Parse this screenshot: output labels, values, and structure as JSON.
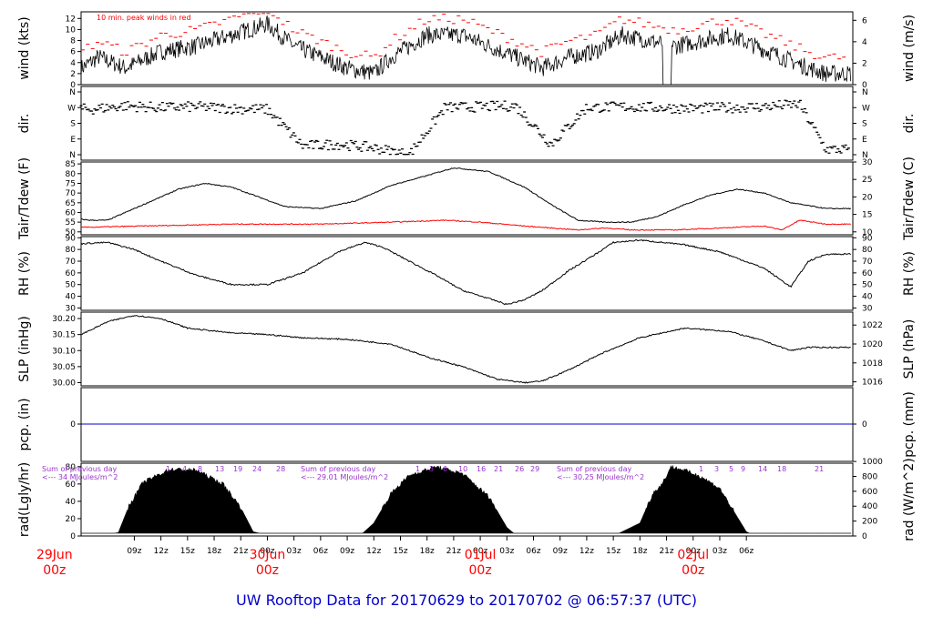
{
  "title": "UW Rooftop Data for 20170629  to  20170702 @ 06:57:37  (UTC)",
  "colors": {
    "frame": "#000000",
    "red": "#ff0000",
    "blue": "#0000cc",
    "purple": "#9933cc",
    "title": "#0000cc"
  },
  "chart_data": [
    {
      "type": "line",
      "ylabel": "wind (kts)",
      "ylabel_right": "wind (m/s)",
      "yticks": [
        "0",
        "2",
        "4",
        "6",
        "8",
        "10",
        "12"
      ],
      "yticks_right": [
        "0",
        "2",
        "4",
        "6"
      ],
      "ylim": [
        0,
        13.2
      ],
      "annotation": "10 min. peak winds in red",
      "series": [
        {
          "name": "wind",
          "x": [
            0,
            3,
            5,
            8,
            12,
            16,
            20,
            24,
            27,
            30,
            33,
            36,
            38,
            42,
            46,
            49,
            52,
            55,
            58,
            61,
            64,
            67,
            70,
            73,
            76,
            79,
            82,
            85,
            87
          ],
          "values": [
            4,
            3,
            5,
            3,
            6,
            7,
            9,
            11,
            7,
            5,
            3,
            2,
            5,
            9,
            9,
            7,
            5,
            3,
            5,
            6,
            9,
            8,
            7,
            8,
            9,
            7,
            5,
            3,
            2
          ]
        }
      ]
    },
    {
      "type": "scatter",
      "ylabel": "dir.",
      "ylabel_right": "dir.",
      "yticks": [
        "N",
        "W",
        "S",
        "E",
        "N"
      ],
      "yticks_right": [
        "N",
        "W",
        "S",
        "E",
        "N"
      ],
      "series": [
        {
          "name": "direction",
          "x": [
            0,
            4,
            8,
            12,
            16,
            20,
            24,
            28,
            32,
            36,
            40,
            44,
            48,
            52,
            56,
            60,
            64,
            68,
            72,
            76,
            80,
            84,
            87
          ],
          "values": [
            270,
            260,
            280,
            270,
            275,
            265,
            260,
            50,
            60,
            40,
            0,
            270,
            275,
            280,
            60,
            270,
            275,
            270,
            265,
            270,
            275,
            290,
            30
          ]
        }
      ]
    },
    {
      "type": "line",
      "ylabel": "Tair/Tdew (F)",
      "ylabel_right": "Tair/Tdew (C)",
      "yticks": [
        "50",
        "55",
        "60",
        "65",
        "70",
        "75",
        "80",
        "85"
      ],
      "yticks_right": [
        "10",
        "15",
        "20",
        "25",
        "30"
      ],
      "ylim": [
        48.5,
        86
      ],
      "series": [
        {
          "name": "Tair",
          "x": [
            0,
            4,
            6,
            10,
            14,
            17,
            20,
            23,
            26,
            30,
            34,
            38,
            42,
            45,
            49,
            53,
            56,
            59,
            62,
            65,
            68,
            71,
            74,
            77,
            80,
            83,
            87
          ],
          "values": [
            58,
            56,
            56,
            64,
            72,
            75,
            73,
            68,
            63,
            62,
            66,
            74,
            79,
            83,
            81,
            73,
            64,
            56,
            55,
            55,
            58,
            64,
            69,
            72,
            70,
            65,
            62
          ]
        },
        {
          "name": "Tdew",
          "x": [
            0,
            10,
            20,
            30,
            38,
            44,
            48,
            53,
            56,
            59,
            62,
            65,
            70,
            75,
            80,
            82,
            84,
            87
          ],
          "values": [
            52,
            53,
            54,
            54,
            55,
            56,
            55,
            53,
            52,
            51,
            52,
            51,
            51,
            52,
            53,
            51,
            56,
            54
          ]
        }
      ]
    },
    {
      "type": "line",
      "ylabel": "RH (%)",
      "ylabel_right": "RH (%)",
      "yticks": [
        "30",
        "40",
        "50",
        "60",
        "70",
        "80",
        "90"
      ],
      "yticks_right": [
        "30",
        "40",
        "50",
        "60",
        "70",
        "80",
        "90"
      ],
      "ylim": [
        28,
        91
      ],
      "series": [
        {
          "name": "RH",
          "x": [
            0,
            3,
            6,
            9,
            12,
            16,
            20,
            24,
            28,
            32,
            35,
            37,
            40,
            43,
            46,
            49,
            51,
            53,
            55,
            58,
            61,
            63,
            66,
            71,
            75,
            80,
            83,
            85,
            87
          ],
          "values": [
            78,
            85,
            86,
            80,
            70,
            58,
            50,
            50,
            60,
            78,
            86,
            82,
            70,
            58,
            45,
            38,
            33,
            37,
            45,
            62,
            76,
            86,
            88,
            84,
            78,
            64,
            48,
            70,
            76
          ]
        }
      ]
    },
    {
      "type": "line",
      "ylabel": "SLP (inHg)",
      "ylabel_right": "SLP (hPa)",
      "yticks": [
        "30.00",
        "30.05",
        "30.10",
        "30.15",
        "30.20"
      ],
      "yticks_right": [
        "1016",
        "1018",
        "1020",
        "1022"
      ],
      "ylim": [
        29.99,
        30.22
      ],
      "series": [
        {
          "name": "SLP",
          "x": [
            0,
            3,
            6,
            9,
            12,
            15,
            20,
            24,
            28,
            33,
            38,
            42,
            46,
            50,
            53,
            55,
            58,
            62,
            66,
            71,
            76,
            80,
            83,
            85,
            87
          ],
          "values": [
            30.15,
            30.15,
            30.19,
            30.21,
            30.2,
            30.17,
            30.155,
            30.15,
            30.14,
            30.135,
            30.12,
            30.08,
            30.05,
            30.01,
            30.0,
            30.005,
            30.04,
            30.095,
            30.14,
            30.17,
            30.16,
            30.13,
            30.1,
            30.11,
            30.11
          ]
        }
      ]
    },
    {
      "type": "line",
      "ylabel": "pcp. (in)",
      "ylabel_right": "pcp. (mm)",
      "yticks": [
        "0"
      ],
      "yticks_right": [
        "0"
      ],
      "series": [
        {
          "name": "precip",
          "x": [
            0,
            87
          ],
          "values": [
            0,
            0
          ]
        }
      ]
    },
    {
      "type": "area",
      "ylabel": "rad(Lgly/hr)",
      "ylabel_right": "rad (W/m^2)",
      "yticks": [
        "0",
        "20",
        "40",
        "60",
        "80"
      ],
      "yticks_right": [
        "0",
        "200",
        "400",
        "600",
        "800",
        "1000"
      ],
      "ylim": [
        0,
        84
      ],
      "annotations": [
        {
          "line1": "Sum of previous day",
          "line2": "<--- 34 MJoules/m^2"
        },
        {
          "line1": "Sum of previous day",
          "line2": "<--- 29.01 MJoules/m^2"
        },
        {
          "line1": "Sum of previous day",
          "line2": "<--- 30.25 MJoules/m^2"
        }
      ],
      "sunhours": [
        [
          "1",
          "4",
          "8",
          "13",
          "19",
          "24",
          "28"
        ],
        [
          "1",
          "3",
          "6",
          "10",
          "16",
          "21",
          "26",
          "29"
        ],
        [
          "1",
          "3",
          "5",
          "9",
          "14",
          "18",
          "21"
        ]
      ],
      "series": [
        {
          "name": "radiation",
          "x": [
            4.9,
            5.5,
            7.2,
            8.4,
            10,
            13,
            16,
            19,
            21,
            22.4,
            23.2,
            24.6,
            25.8,
            33.9,
            34.5,
            36,
            38,
            40,
            43,
            46,
            49,
            51,
            51.8,
            53.3,
            62.6,
            63.2,
            66,
            67.5,
            68.5,
            69.5,
            71,
            73,
            75,
            78,
            78.6,
            80
          ],
          "values": [
            0,
            1,
            4,
            35,
            62,
            77,
            76,
            60,
            33,
            5,
            3,
            0,
            0,
            0,
            1,
            15,
            50,
            70,
            80,
            72,
            45,
            10,
            3,
            0,
            0,
            1,
            15,
            50,
            60,
            80,
            76,
            68,
            55,
            5,
            2,
            0
          ]
        }
      ]
    }
  ],
  "x_axis": {
    "ticks": [
      "09z",
      "12z",
      "15z",
      "18z",
      "21z",
      "00z",
      "03z",
      "06z",
      "09z",
      "12z",
      "15z",
      "18z",
      "21z",
      "00z",
      "03z",
      "06z",
      "09z",
      "12z",
      "15z",
      "18z",
      "21z",
      "00z",
      "03z",
      "06z"
    ],
    "day_labels": [
      {
        "name": "29Jun",
        "time": "00z"
      },
      {
        "name": "30Jun",
        "time": "00z"
      },
      {
        "name": "01Jul",
        "time": "00z"
      },
      {
        "name": "02Jul",
        "time": "00z"
      }
    ]
  }
}
